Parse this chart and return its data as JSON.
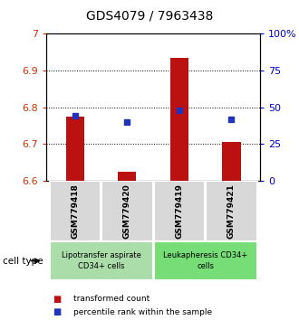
{
  "title": "GDS4079 / 7963438",
  "samples": [
    "GSM779418",
    "GSM779420",
    "GSM779419",
    "GSM779421"
  ],
  "bar_bottom": 6.6,
  "bar_tops": [
    6.775,
    6.625,
    6.935,
    6.705
  ],
  "percentile_values": [
    44,
    40,
    48,
    42
  ],
  "ylim_left": [
    6.6,
    7.0
  ],
  "ylim_right": [
    0,
    100
  ],
  "yticks_left": [
    6.6,
    6.7,
    6.8,
    6.9,
    7.0
  ],
  "ytick_labels_left": [
    "6.6",
    "6.7",
    "6.8",
    "6.9",
    "7"
  ],
  "yticks_right": [
    0,
    25,
    50,
    75,
    100
  ],
  "ytick_labels_right": [
    "0",
    "25",
    "50",
    "75",
    "100%"
  ],
  "bar_color": "#bb1111",
  "dot_color": "#2233bb",
  "bar_width": 0.35,
  "group_info": [
    {
      "span": [
        0,
        1
      ],
      "label": "Lipotransfer aspirate\nCD34+ cells",
      "color": "#aaddaa"
    },
    {
      "span": [
        2,
        3
      ],
      "label": "Leukapheresis CD34+\ncells",
      "color": "#77dd77"
    }
  ],
  "cell_type_label": "cell type",
  "legend_items": [
    "transformed count",
    "percentile rank within the sample"
  ],
  "legend_colors": [
    "#bb1111",
    "#2233bb"
  ],
  "tick_label_color_left": "#cc3300",
  "tick_label_color_right": "#0000cc",
  "title_fontsize": 10
}
